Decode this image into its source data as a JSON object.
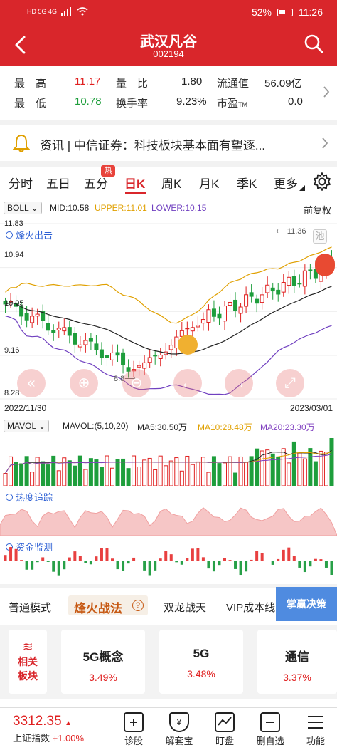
{
  "status_bar": {
    "left_icons": "HD 5G 4G",
    "battery": "52%",
    "time": "11:26"
  },
  "header": {
    "title": "武汉凡谷",
    "code": "002194"
  },
  "quote": {
    "high_label": "最　高",
    "high": "11.17",
    "low_label": "最　低",
    "low": "10.78",
    "volume_ratio_label": "量　比",
    "volume_ratio": "1.80",
    "turnover_label": "换手率",
    "turnover": "9.23%",
    "float_value_label": "流通值",
    "float_value": "56.09亿",
    "pe_label": "市盈",
    "pe_suffix": "TM",
    "pe": "0.0"
  },
  "news": {
    "text": "资讯 | 中信证券：科技板块基本面有望逐..."
  },
  "tabs": {
    "items": [
      "分时",
      "五日",
      "五分",
      "日K",
      "周K",
      "月K",
      "季K",
      "更多"
    ],
    "active": "日K",
    "hot_badge": "热"
  },
  "boll": {
    "selector": "BOLL",
    "mid": "MID:10.58",
    "upper": "UPPER:11.01",
    "lower": "LOWER:10.15",
    "adjust": "前复权",
    "colors": {
      "mid": "#222222",
      "upper": "#e0a000",
      "lower": "#7040c0"
    }
  },
  "chart_labels": {
    "y_top": "11.83",
    "y_2": "10.94",
    "y_3": "10.05",
    "y_4": "9.16",
    "y_bottom": "8.28",
    "max_marker": "11.36",
    "min_marker": "8.8",
    "date_start": "2022/11/30",
    "date_end": "2023/03/01",
    "fire_signal": "烽火出击",
    "pool_badge": "池"
  },
  "mavol": {
    "selector": "MAVOL",
    "params": "MAVOL:(5,10,20)",
    "ma5": "MA5:30.50万",
    "ma10": "MA10:28.48万",
    "ma20": "MA20:23.30万",
    "colors": {
      "ma5": "#222222",
      "ma10": "#e0a000",
      "ma20": "#8040c0"
    }
  },
  "indicators": {
    "heat": "热度追踪",
    "capital": "资金监测"
  },
  "modes": {
    "items": [
      "普通模式",
      "烽火战法",
      "双龙战天",
      "VIP成本线"
    ],
    "active": "烽火战法",
    "vip_button": "掌赢决策"
  },
  "sectors": {
    "related_label_1": "相关",
    "related_label_2": "板块",
    "items": [
      {
        "name": "5G概念",
        "change": "3.49%"
      },
      {
        "name": "5G",
        "change": "3.48%"
      },
      {
        "name": "通信",
        "change": "3.37%"
      }
    ]
  },
  "bottom": {
    "index_value": "3312.35",
    "index_name": "上证指数",
    "index_change": "+1.00%",
    "items": [
      "诊股",
      "解套宝",
      "盯盘",
      "删自选",
      "功能"
    ]
  },
  "chart_data": {
    "type": "candlestick",
    "x_range": [
      "2022/11/30",
      "2023/03/01"
    ],
    "ylim": [
      8.28,
      11.83
    ],
    "y_ticks": [
      11.83,
      10.94,
      10.05,
      9.16,
      8.28
    ],
    "annotations": {
      "max": 11.36,
      "min": 8.8
    },
    "last": {
      "mid": 10.58,
      "upper": 11.01,
      "lower": 10.15
    }
  }
}
